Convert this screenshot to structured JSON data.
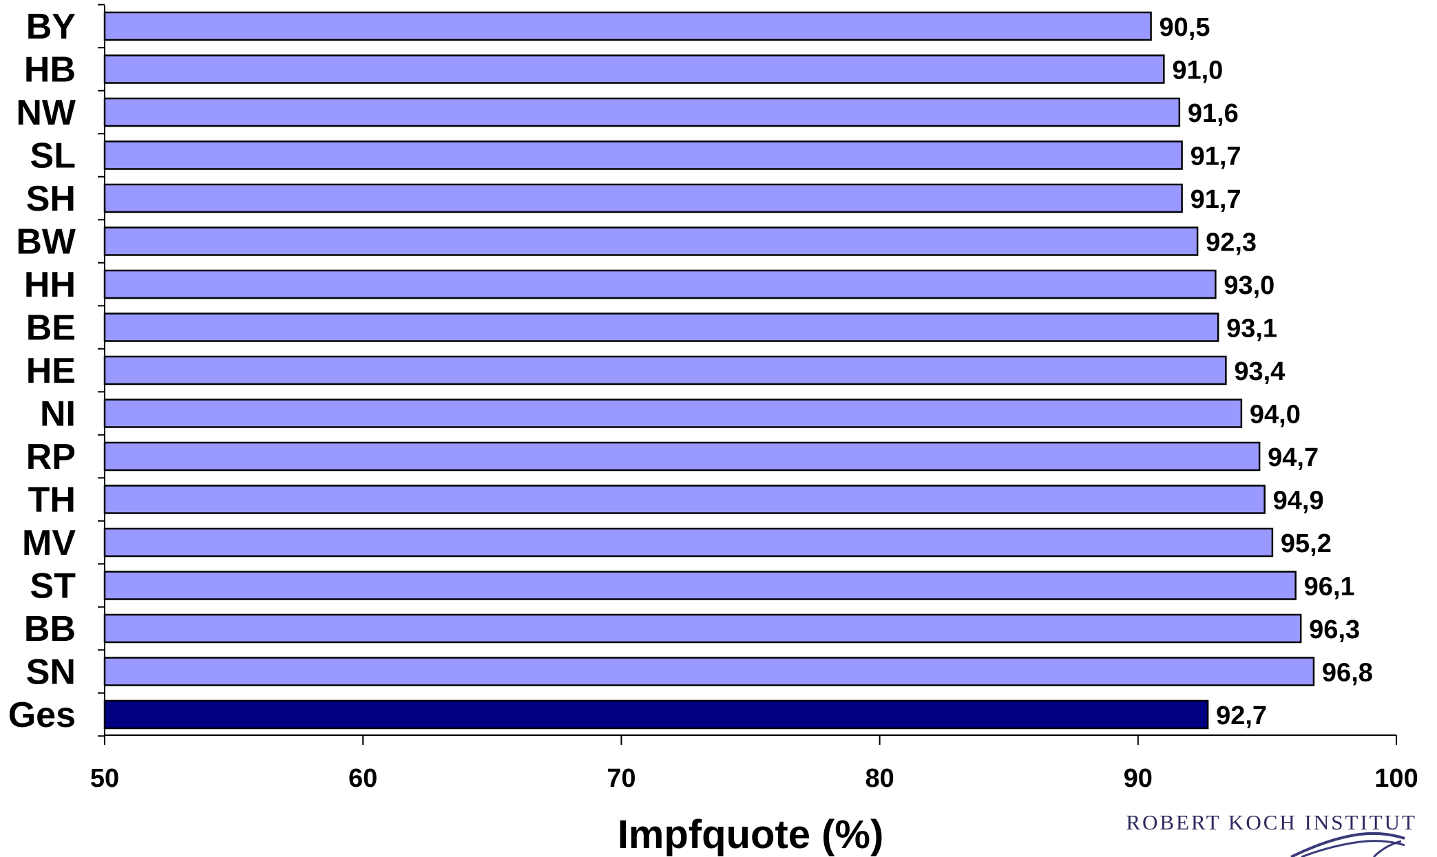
{
  "chart_data": {
    "type": "bar",
    "orientation": "horizontal",
    "categories": [
      "BY",
      "HB",
      "NW",
      "SL",
      "SH",
      "BW",
      "HH",
      "BE",
      "HE",
      "NI",
      "RP",
      "TH",
      "MV",
      "ST",
      "BB",
      "SN",
      "Ges"
    ],
    "values": [
      90.5,
      91.0,
      91.6,
      91.7,
      91.7,
      92.3,
      93.0,
      93.1,
      93.4,
      94.0,
      94.7,
      94.9,
      95.2,
      96.1,
      96.3,
      96.8,
      92.7
    ],
    "value_labels": [
      "90,5",
      "91,0",
      "91,6",
      "91,7",
      "91,7",
      "92,3",
      "93,0",
      "93,1",
      "93,4",
      "94,0",
      "94,7",
      "94,9",
      "95,2",
      "96,1",
      "96,3",
      "96,8",
      "92,7"
    ],
    "highlight_category": "Ges",
    "xlabel": "Impfquote (%)",
    "xlim": [
      50,
      100
    ],
    "xticks": [
      50,
      60,
      70,
      80,
      90,
      100
    ],
    "xtick_labels": [
      "50",
      "60",
      "70",
      "80",
      "90",
      "100"
    ],
    "grid": false,
    "legend": "none",
    "colors": {
      "bar": "#9999ff",
      "highlight_bar": "#000080",
      "bar_outline": "#000000"
    }
  },
  "logo": {
    "text": "ROBERT KOCH INSTITUT",
    "icon": "rki-logo-icon"
  }
}
